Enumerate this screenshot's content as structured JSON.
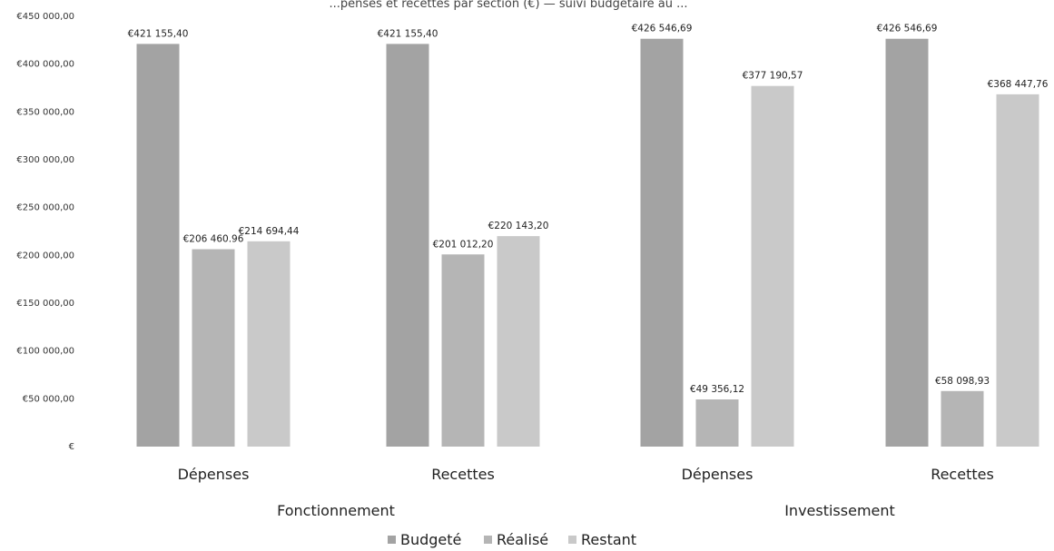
{
  "chart_data": {
    "type": "bar",
    "title": "...penses et recettes par section (€) — suivi budgétaire au ...",
    "groups": [
      {
        "name": "Fonctionnement",
        "categories": [
          "Dépenses",
          "Recettes"
        ]
      },
      {
        "name": "Investissement",
        "categories": [
          "Dépenses",
          "Recettes"
        ]
      }
    ],
    "categories": [
      "Dépenses",
      "Recettes",
      "Dépenses",
      "Recettes"
    ],
    "series": [
      {
        "name": "Budgeté",
        "color": "#a3a3a3",
        "values": [
          421155.4,
          421155.4,
          426546.69,
          426546.69
        ],
        "labels": [
          "€421 155,40",
          "€421 155,40",
          "€426 546,69",
          "€426 546,69"
        ]
      },
      {
        "name": "Réalisé",
        "color": "#b5b5b5",
        "values": [
          206460.96,
          201012.2,
          49356.12,
          58098.93
        ],
        "labels": [
          "€206 460.96",
          "€201 012,20",
          "€49 356,12",
          "€58 098,93"
        ]
      },
      {
        "name": "Restant",
        "color": "#c9c9c9",
        "values": [
          214694.44,
          220143.2,
          377190.57,
          368447.76
        ],
        "labels": [
          "€214 694,44",
          "€220 143,20",
          "€377 190,57",
          "€368 447,76"
        ]
      }
    ],
    "ylim": [
      0,
      450000
    ],
    "yticks": [
      0,
      50000,
      100000,
      150000,
      200000,
      250000,
      300000,
      350000,
      400000,
      450000
    ],
    "ytick_labels": [
      "€",
      "€50 000,00",
      "€100 000,00",
      "€150 000,00",
      "€200 000,00",
      "€250 000,00",
      "€300 000,00",
      "€350 000,00",
      "€400 000,00",
      "€450 000,00"
    ],
    "grid": false,
    "legend": "bottom-center"
  }
}
